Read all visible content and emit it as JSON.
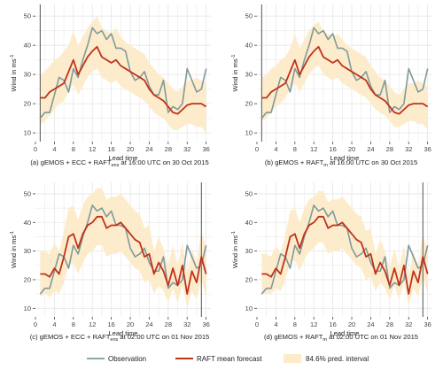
{
  "colors": {
    "observation": "#7f9a9a",
    "forecast": "#c0321a",
    "interval_fill": "#fdebc9",
    "grid": "#e6e6e6",
    "vline": "#555555"
  },
  "legend": {
    "observation": "Observation",
    "forecast": "RAFT mean forecast",
    "interval": "84.6% pred. interval"
  },
  "chart_data": [
    {
      "type": "line",
      "caption": "(a) gEMOS + ECC + RAFT",
      "caption_sub": "ens",
      "caption_rest": " at 16:00 UTC on 30 Oct 2015",
      "xlabel": "Lead time",
      "ylabel": "Wind in ms",
      "ylabel_sup": "-1",
      "xlim": [
        0,
        37
      ],
      "ylim": [
        7,
        54
      ],
      "xticks": [
        0,
        4,
        8,
        12,
        16,
        20,
        24,
        28,
        32,
        36
      ],
      "yticks": [
        10,
        20,
        30,
        40,
        50
      ],
      "vline_at": 1,
      "series": [
        {
          "name": "Observation",
          "x": [
            1,
            2,
            3,
            4,
            5,
            6,
            7,
            8,
            9,
            10,
            11,
            12,
            13,
            14,
            15,
            16,
            17,
            18,
            19,
            20,
            21,
            22,
            23,
            24,
            25,
            26,
            27,
            28,
            29,
            30,
            31,
            32,
            33,
            34,
            35,
            36
          ],
          "values": [
            15,
            17,
            17,
            23,
            29,
            28,
            24,
            32,
            29,
            35,
            40,
            46,
            44,
            45,
            42,
            44,
            39,
            39,
            38,
            31,
            28,
            29,
            31,
            26,
            23,
            23,
            28,
            17,
            19,
            18,
            20,
            32,
            28,
            24,
            25,
            32
          ]
        },
        {
          "name": "RAFT mean forecast",
          "x": [
            1,
            2,
            3,
            4,
            5,
            6,
            7,
            8,
            9,
            10,
            11,
            12,
            13,
            14,
            15,
            16,
            17,
            18,
            19,
            20,
            21,
            22,
            23,
            24,
            25,
            26,
            27,
            28,
            29,
            30,
            31,
            32,
            33,
            34,
            35,
            36
          ],
          "values": [
            22,
            22,
            24,
            25,
            26,
            27,
            31,
            35,
            30,
            33,
            36,
            38,
            39.5,
            36,
            35,
            34,
            35,
            33,
            32,
            31,
            30,
            29,
            28,
            25,
            23,
            22,
            21,
            19,
            17,
            16.5,
            18,
            19.5,
            20,
            20,
            20,
            19
          ]
        }
      ],
      "interval_lower": [
        13,
        14,
        16,
        18,
        20,
        21,
        24,
        27,
        23,
        26,
        29,
        31,
        32,
        29,
        28,
        27,
        28,
        26,
        25,
        24,
        23,
        22,
        21,
        19,
        17,
        16,
        15,
        13,
        11,
        11,
        12,
        13,
        13,
        12,
        12,
        10
      ],
      "interval_upper": [
        30,
        31,
        33,
        35,
        36,
        38,
        40,
        45,
        40,
        43,
        46,
        48,
        50,
        46,
        45,
        44,
        46,
        43,
        41,
        40,
        39,
        38,
        37,
        34,
        32,
        30,
        29,
        27,
        25,
        24,
        26,
        28,
        28,
        29,
        28,
        27
      ]
    },
    {
      "type": "line",
      "caption": "(b) gEMOS + RAFT",
      "caption_sub": "m",
      "caption_rest": " at 16:00 UTC on 30 Oct 2015",
      "xlabel": "Lead time",
      "ylabel": "Wind in ms",
      "ylabel_sup": "-1",
      "xlim": [
        0,
        37
      ],
      "ylim": [
        7,
        54
      ],
      "xticks": [
        0,
        4,
        8,
        12,
        16,
        20,
        24,
        28,
        32,
        36
      ],
      "yticks": [
        10,
        20,
        30,
        40,
        50
      ],
      "vline_at": 1,
      "series": [
        {
          "name": "Observation",
          "x": [
            1,
            2,
            3,
            4,
            5,
            6,
            7,
            8,
            9,
            10,
            11,
            12,
            13,
            14,
            15,
            16,
            17,
            18,
            19,
            20,
            21,
            22,
            23,
            24,
            25,
            26,
            27,
            28,
            29,
            30,
            31,
            32,
            33,
            34,
            35,
            36
          ],
          "values": [
            15,
            17,
            17,
            23,
            29,
            28,
            24,
            32,
            29,
            35,
            40,
            46,
            44,
            45,
            42,
            44,
            39,
            39,
            38,
            31,
            28,
            29,
            31,
            26,
            23,
            23,
            28,
            17,
            19,
            18,
            20,
            32,
            28,
            24,
            25,
            32
          ]
        },
        {
          "name": "RAFT mean forecast",
          "x": [
            1,
            2,
            3,
            4,
            5,
            6,
            7,
            8,
            9,
            10,
            11,
            12,
            13,
            14,
            15,
            16,
            17,
            18,
            19,
            20,
            21,
            22,
            23,
            24,
            25,
            26,
            27,
            28,
            29,
            30,
            31,
            32,
            33,
            34,
            35,
            36
          ],
          "values": [
            22,
            22,
            24,
            25,
            26,
            27,
            31,
            35,
            30,
            33,
            36,
            38,
            39.5,
            36,
            35,
            34,
            35,
            33,
            32,
            31,
            30,
            29,
            28,
            25,
            23,
            22,
            21,
            19,
            17,
            16.5,
            18,
            19.5,
            20,
            20,
            20,
            19
          ]
        }
      ],
      "interval_lower": [
        14,
        15,
        17,
        19,
        20,
        22,
        25,
        27,
        24,
        27,
        30,
        32,
        33,
        30,
        29,
        28,
        29,
        27,
        26,
        25,
        24,
        23,
        22,
        20,
        18,
        17,
        16,
        14,
        12,
        12,
        13,
        14,
        14,
        13,
        13,
        11
      ],
      "interval_upper": [
        29,
        30,
        32,
        33,
        35,
        36,
        39,
        44,
        39,
        42,
        45,
        47,
        48,
        45,
        44,
        43,
        44,
        42,
        40,
        39,
        38,
        37,
        36,
        33,
        31,
        29,
        28,
        26,
        24,
        23,
        25,
        27,
        27,
        28,
        27,
        26
      ]
    },
    {
      "type": "line",
      "caption": "(c) gEMOS + ECC + RAFT",
      "caption_sub": "ens",
      "caption_rest": " at 02:00 UTC on 01 Nov 2015",
      "xlabel": "Lead time",
      "ylabel": "Wind in ms",
      "ylabel_sup": "-1",
      "xlim": [
        0,
        37
      ],
      "ylim": [
        7,
        54
      ],
      "xticks": [
        0,
        4,
        8,
        12,
        16,
        20,
        24,
        28,
        32,
        36
      ],
      "yticks": [
        10,
        20,
        30,
        40,
        50
      ],
      "vline_at": 35,
      "series": [
        {
          "name": "Observation",
          "x": [
            1,
            2,
            3,
            4,
            5,
            6,
            7,
            8,
            9,
            10,
            11,
            12,
            13,
            14,
            15,
            16,
            17,
            18,
            19,
            20,
            21,
            22,
            23,
            24,
            25,
            26,
            27,
            28,
            29,
            30,
            31,
            32,
            33,
            34,
            35,
            36
          ],
          "values": [
            15,
            17,
            17,
            23,
            29,
            28,
            24,
            32,
            29,
            35,
            40,
            46,
            44,
            45,
            42,
            44,
            39,
            39,
            38,
            31,
            28,
            29,
            31,
            26,
            23,
            23,
            28,
            17,
            19,
            18,
            20,
            32,
            28,
            24,
            25,
            32
          ]
        },
        {
          "name": "RAFT mean forecast",
          "x": [
            1,
            2,
            3,
            4,
            5,
            6,
            7,
            8,
            9,
            10,
            11,
            12,
            13,
            14,
            15,
            16,
            17,
            18,
            19,
            20,
            21,
            22,
            23,
            24,
            25,
            26,
            27,
            28,
            29,
            30,
            31,
            32,
            33,
            34,
            35,
            36
          ],
          "values": [
            22,
            22,
            21,
            24,
            22,
            28,
            35,
            36,
            31,
            36,
            39,
            40,
            42,
            42,
            38,
            39,
            39,
            40,
            38,
            36,
            34,
            33,
            28,
            29,
            22,
            26,
            23,
            18,
            24,
            18,
            25,
            15,
            23,
            19,
            28,
            22
          ]
        }
      ],
      "interval_lower": [
        14,
        15,
        14,
        16,
        15,
        19,
        25,
        26,
        22,
        26,
        29,
        30,
        32,
        32,
        28,
        29,
        29,
        30,
        28,
        26,
        24,
        23,
        19,
        20,
        15,
        18,
        16,
        12,
        17,
        12,
        18,
        10,
        16,
        13,
        20,
        14
      ],
      "interval_upper": [
        30,
        30,
        29,
        33,
        30,
        37,
        45,
        46,
        41,
        46,
        49,
        50,
        52,
        52,
        48,
        49,
        49,
        50,
        48,
        46,
        44,
        43,
        38,
        39,
        30,
        35,
        31,
        25,
        32,
        25,
        33,
        22,
        31,
        26,
        37,
        31
      ]
    },
    {
      "type": "line",
      "caption": "(d) gEMOS + RAFT",
      "caption_sub": "m",
      "caption_rest": " at 02:00 UTC on 01 Nov 2015",
      "xlabel": "Lead time",
      "ylabel": "Wind in ms",
      "ylabel_sup": "-1",
      "xlim": [
        0,
        37
      ],
      "ylim": [
        7,
        54
      ],
      "xticks": [
        0,
        4,
        8,
        12,
        16,
        20,
        24,
        28,
        32,
        36
      ],
      "yticks": [
        10,
        20,
        30,
        40,
        50
      ],
      "vline_at": 35,
      "series": [
        {
          "name": "Observation",
          "x": [
            1,
            2,
            3,
            4,
            5,
            6,
            7,
            8,
            9,
            10,
            11,
            12,
            13,
            14,
            15,
            16,
            17,
            18,
            19,
            20,
            21,
            22,
            23,
            24,
            25,
            26,
            27,
            28,
            29,
            30,
            31,
            32,
            33,
            34,
            35,
            36
          ],
          "values": [
            15,
            17,
            17,
            23,
            29,
            28,
            24,
            32,
            29,
            35,
            40,
            46,
            44,
            45,
            42,
            44,
            39,
            39,
            38,
            31,
            28,
            29,
            31,
            26,
            23,
            23,
            28,
            17,
            19,
            18,
            20,
            32,
            28,
            24,
            25,
            32
          ]
        },
        {
          "name": "RAFT mean forecast",
          "x": [
            1,
            2,
            3,
            4,
            5,
            6,
            7,
            8,
            9,
            10,
            11,
            12,
            13,
            14,
            15,
            16,
            17,
            18,
            19,
            20,
            21,
            22,
            23,
            24,
            25,
            26,
            27,
            28,
            29,
            30,
            31,
            32,
            33,
            34,
            35,
            36
          ],
          "values": [
            22,
            22,
            21,
            24,
            22,
            28,
            35,
            36,
            31,
            36,
            39,
            40,
            42,
            42,
            38,
            39,
            39,
            40,
            38,
            36,
            34,
            33,
            28,
            29,
            22,
            26,
            23,
            18,
            24,
            18,
            25,
            15,
            23,
            19,
            28,
            22
          ]
        }
      ],
      "interval_lower": [
        15,
        15,
        15,
        17,
        16,
        20,
        26,
        27,
        23,
        27,
        30,
        31,
        33,
        33,
        29,
        30,
        30,
        31,
        29,
        27,
        25,
        24,
        20,
        21,
        16,
        19,
        17,
        13,
        18,
        13,
        19,
        11,
        17,
        14,
        21,
        15
      ],
      "interval_upper": [
        29,
        29,
        28,
        32,
        29,
        36,
        44,
        45,
        40,
        45,
        48,
        49,
        51,
        51,
        47,
        48,
        48,
        49,
        47,
        45,
        43,
        42,
        37,
        38,
        29,
        34,
        30,
        24,
        31,
        24,
        32,
        21,
        30,
        25,
        36,
        30
      ]
    }
  ]
}
